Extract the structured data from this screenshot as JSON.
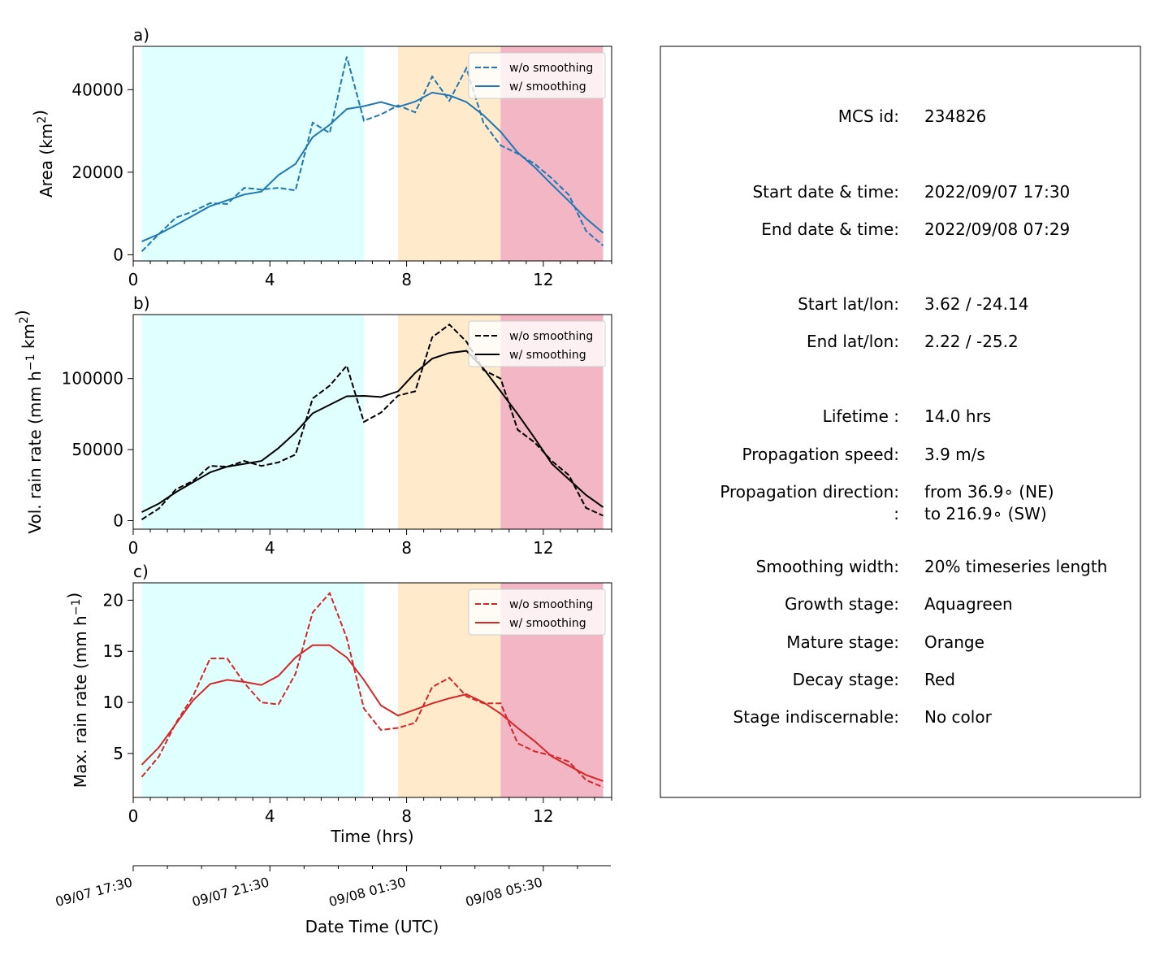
{
  "x_hours": [
    0.25,
    0.75,
    1.25,
    1.75,
    2.25,
    2.75,
    3.25,
    3.75,
    4.25,
    4.75,
    5.25,
    5.75,
    6.25,
    6.75,
    7.25,
    7.75,
    8.25,
    8.75,
    9.25,
    9.75,
    10.25,
    10.75,
    11.25,
    11.75,
    12.25,
    12.75,
    13.25,
    13.75
  ],
  "stages": [
    {
      "name": "Aquagreen",
      "from": 0.25,
      "to": 6.75,
      "color": "#e0ffff"
    },
    {
      "name": "Orange",
      "from": 7.75,
      "to": 10.75,
      "color": "#ffebcc"
    },
    {
      "name": "Red",
      "from": 10.75,
      "to": 13.75,
      "color": "#f3b6c4"
    }
  ],
  "chart_data": [
    {
      "type": "line",
      "panel_label": "a)",
      "ylabel": "Area  (km",
      "ylabel_sup": "2",
      "ylabel_end": ")",
      "ylim": [
        -1500,
        50500
      ],
      "yticks": [
        0,
        20000,
        40000
      ],
      "xlim": [
        0,
        14
      ],
      "xticks": [
        0,
        4,
        8,
        12
      ],
      "color": "#1f77b4",
      "legend": [
        "w/o smoothing",
        "w/ smoothing"
      ],
      "series": [
        {
          "name": "w/o smoothing",
          "style": "dashed",
          "values": [
            800,
            5000,
            9000,
            10500,
            12500,
            12300,
            16200,
            15800,
            16200,
            15600,
            32000,
            29500,
            48000,
            32500,
            34000,
            36200,
            34500,
            43200,
            37300,
            45200,
            32000,
            26500,
            24500,
            22000,
            18500,
            14500,
            5800,
            2200
          ]
        },
        {
          "name": "w/ smoothing",
          "style": "solid",
          "values": [
            3200,
            5000,
            7200,
            9500,
            11800,
            13200,
            14600,
            15300,
            19300,
            22000,
            28500,
            31500,
            35300,
            36000,
            37000,
            35800,
            37100,
            39300,
            38600,
            37000,
            33800,
            29800,
            24800,
            21200,
            17000,
            13000,
            8800,
            5300
          ]
        }
      ]
    },
    {
      "type": "line",
      "panel_label": "b)",
      "ylabel": "Vol. rain rate (mm h",
      "ylabel_sup": "−1",
      "ylabel_mid": " km",
      "ylabel_sup2": "2",
      "ylabel_end": ")",
      "ylim": [
        -6000,
        145000
      ],
      "yticks": [
        0,
        50000,
        100000
      ],
      "xlim": [
        0,
        14
      ],
      "xticks": [
        0,
        4,
        8,
        12
      ],
      "color": "#000000",
      "legend": [
        "w/o smoothing",
        "w/ smoothing"
      ],
      "series": [
        {
          "name": "w/o smoothing",
          "style": "dashed",
          "values": [
            800,
            8500,
            22000,
            28000,
            38500,
            38000,
            42000,
            38500,
            41000,
            46500,
            86000,
            95000,
            109000,
            69500,
            76000,
            88000,
            91000,
            129000,
            138000,
            126000,
            106000,
            100000,
            64000,
            55000,
            42000,
            32000,
            9000,
            3500
          ]
        },
        {
          "name": "w/ smoothing",
          "style": "solid",
          "values": [
            6000,
            12000,
            20000,
            27000,
            34000,
            38000,
            40000,
            42000,
            51000,
            62000,
            75500,
            81500,
            87500,
            87800,
            87000,
            91000,
            104000,
            114000,
            118000,
            119500,
            107000,
            91000,
            75000,
            58000,
            40000,
            29000,
            18000,
            9500
          ]
        }
      ]
    },
    {
      "type": "line",
      "panel_label": "c)",
      "ylabel": "Max. rain rate  (mm h",
      "ylabel_sup": "−1",
      "ylabel_end": ")",
      "ylim": [
        0.7,
        21.7
      ],
      "yticks": [
        5,
        10,
        15,
        20
      ],
      "xlim": [
        0,
        14
      ],
      "xticks": [
        0,
        4,
        8,
        12
      ],
      "xlabel": "Time (hrs)",
      "color": "#d62728",
      "legend": [
        "w/o smoothing",
        "w/ smoothing"
      ],
      "series": [
        {
          "name": "w/o smoothing",
          "style": "dashed",
          "values": [
            2.7,
            4.7,
            8.0,
            10.6,
            14.3,
            14.3,
            11.9,
            10.0,
            9.8,
            12.8,
            18.8,
            20.7,
            16.3,
            9.4,
            7.3,
            7.5,
            8.0,
            11.5,
            12.4,
            10.6,
            9.9,
            9.9,
            6.0,
            5.2,
            4.8,
            4.2,
            2.4,
            1.7
          ]
        },
        {
          "name": "w/ smoothing",
          "style": "solid",
          "values": [
            3.9,
            5.6,
            7.9,
            10.2,
            11.8,
            12.2,
            12.0,
            11.7,
            12.6,
            14.4,
            15.6,
            15.6,
            14.4,
            12.2,
            9.7,
            8.7,
            9.3,
            9.9,
            10.4,
            10.8,
            10.0,
            8.9,
            7.5,
            6.2,
            4.7,
            3.8,
            2.9,
            2.3
          ]
        }
      ]
    }
  ],
  "date_axis": {
    "label": "Date Time (UTC)",
    "ticks": [
      {
        "hour": 0,
        "label": "09/07 17:30"
      },
      {
        "hour": 4,
        "label": "09/07 21:30"
      },
      {
        "hour": 8,
        "label": "09/08 01:30"
      },
      {
        "hour": 12,
        "label": "09/08 05:30"
      }
    ]
  },
  "info": {
    "mcs_id": {
      "label": "MCS id:",
      "value": "234826"
    },
    "start_dt": {
      "label": "Start date & time:",
      "value": "2022/09/07 17:30"
    },
    "end_dt": {
      "label": "End date & time:",
      "value": "2022/09/08 07:29"
    },
    "start_ll": {
      "label": "Start lat/lon:",
      "value": "3.62 / -24.14"
    },
    "end_ll": {
      "label": "End lat/lon:",
      "value": "2.22 / -25.2"
    },
    "lifetime": {
      "label": "Lifetime :",
      "value": "14.0 hrs"
    },
    "speed": {
      "label": "Propagation speed:",
      "value": "3.9 m/s"
    },
    "direction": {
      "label": "Propagation direction:",
      "value": "from  36.9∘ (NE)"
    },
    "direction2": {
      "label": ":",
      "value": "to   216.9∘ (SW)"
    },
    "smoothing": {
      "label": "Smoothing width:",
      "value": "20% timeseries length"
    },
    "growth": {
      "label": "Growth stage:",
      "value": "Aquagreen"
    },
    "mature": {
      "label": "Mature stage:",
      "value": "Orange"
    },
    "decay": {
      "label": "Decay stage:",
      "value": "Red"
    },
    "indisc": {
      "label": "Stage indiscernable:",
      "value": "No color"
    }
  }
}
